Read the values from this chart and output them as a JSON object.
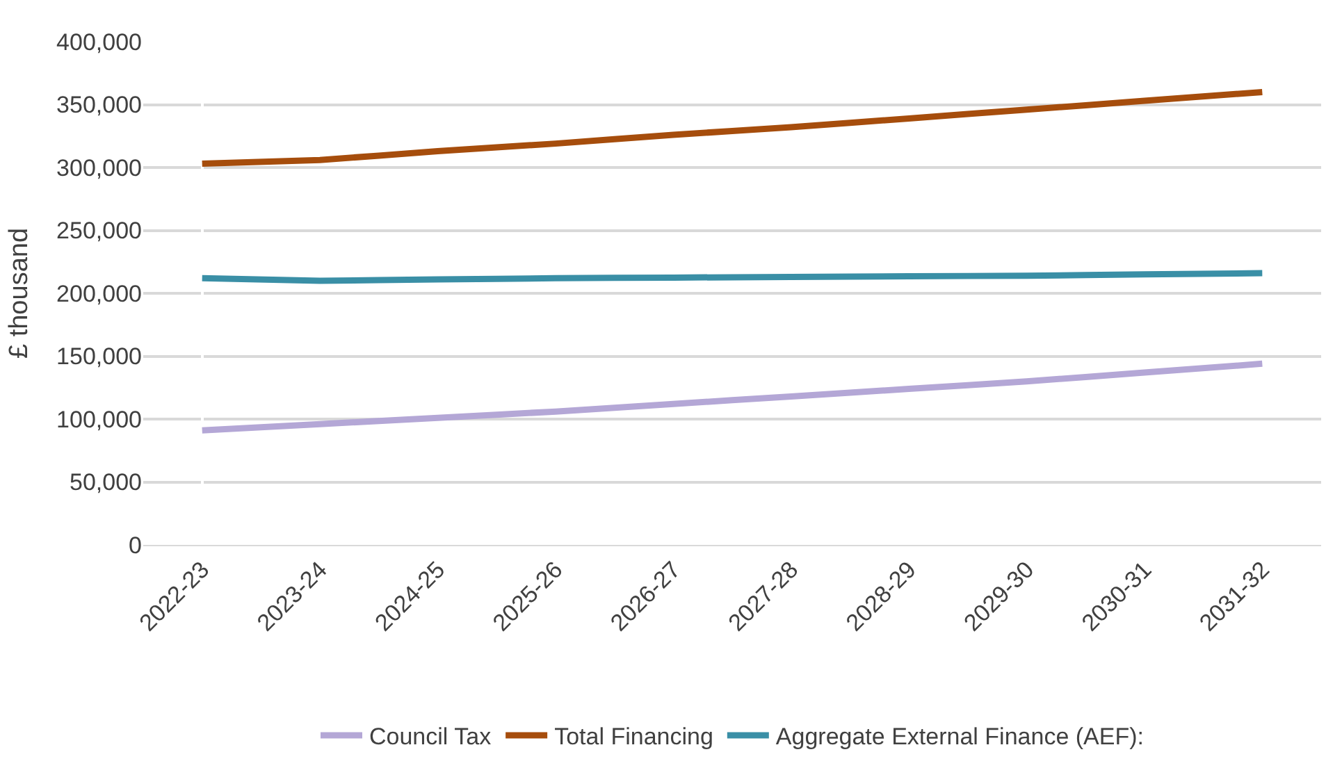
{
  "chart_data": {
    "type": "line",
    "ylabel": "£ thousand",
    "categories": [
      "2022-23",
      "2023-24",
      "2024-25",
      "2025-26",
      "2026-27",
      "2027-28",
      "2028-29",
      "2029-30",
      "2030-31",
      "2031-32"
    ],
    "series": [
      {
        "name": "Council Tax",
        "color": "#b4a7d6",
        "values": [
          91000,
          96000,
          101000,
          106000,
          112000,
          118000,
          124000,
          130000,
          137000,
          144000
        ]
      },
      {
        "name": "Total Financing",
        "color": "#a64d0c",
        "values": [
          303000,
          306000,
          313000,
          319000,
          326000,
          332000,
          339000,
          346000,
          353000,
          360000
        ]
      },
      {
        "name": "Aggregate External Finance (AEF):",
        "color": "#3a8fa6",
        "values": [
          212000,
          210000,
          211000,
          212000,
          212500,
          213000,
          213500,
          214000,
          215000,
          216000
        ]
      }
    ],
    "ylim": [
      0,
      400000
    ],
    "yticks": [
      {
        "value": 0,
        "label": "0"
      },
      {
        "value": 50000,
        "label": "50,000"
      },
      {
        "value": 100000,
        "label": "100,000"
      },
      {
        "value": 150000,
        "label": "150,000"
      },
      {
        "value": 200000,
        "label": "200,000"
      },
      {
        "value": 250000,
        "label": "250,000"
      },
      {
        "value": 300000,
        "label": "300,000"
      },
      {
        "value": 350000,
        "label": "350,000"
      },
      {
        "value": 400000,
        "label": "400,000"
      }
    ],
    "grid": "y",
    "legend": "bottom",
    "marker": "none",
    "line_style": "solid"
  }
}
